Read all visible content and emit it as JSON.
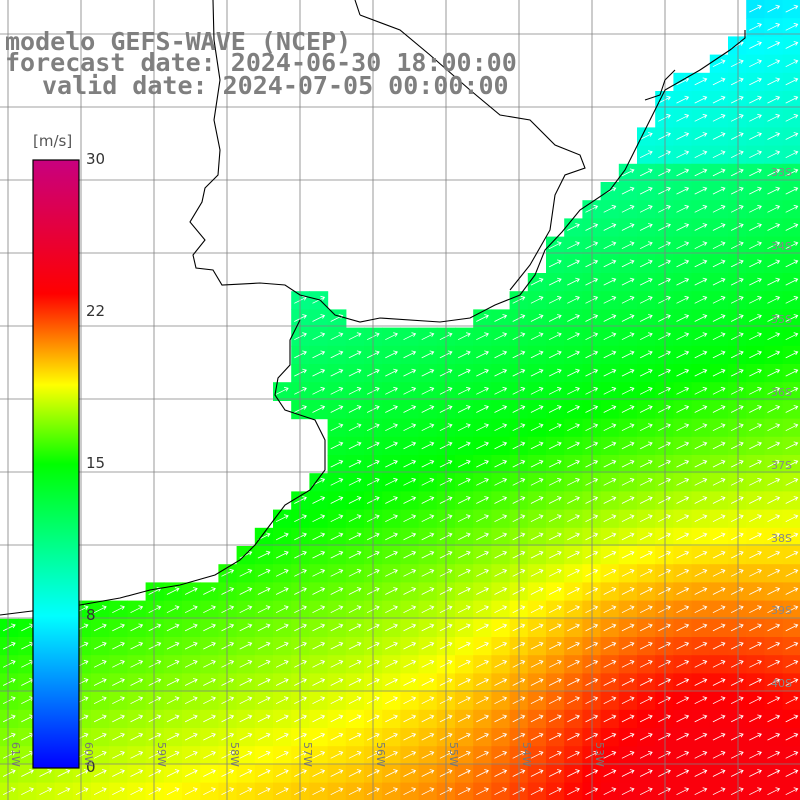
{
  "title": {
    "line1": "modelo GEFS-WAVE (NCEP)",
    "line2": "forecast date: 2024-06-30 18:00:00",
    "line3": "valid date: 2024-07-05 00:00:00"
  },
  "colorbar": {
    "unit": "[m/s]",
    "min": 0,
    "max": 30,
    "ticks": [
      "30",
      "22",
      "15",
      "8",
      "0"
    ],
    "colors": [
      "#0000ff",
      "#00ffff",
      "#00ff00",
      "#ffff00",
      "#ff0000",
      "#c8007f"
    ]
  },
  "map": {
    "variable": "wind speed",
    "lat_labels": [
      "33S",
      "34S",
      "35S",
      "36S",
      "37S",
      "38S",
      "39S",
      "40S"
    ],
    "lon_labels": [
      "61W",
      "60W",
      "59W",
      "58W",
      "57W",
      "56W",
      "55W",
      "54W",
      "53W"
    ],
    "gridline_color": "#808080",
    "coastline_color": "#000000",
    "arrow_color": "#ffffff",
    "land_color": "#ffffff"
  }
}
